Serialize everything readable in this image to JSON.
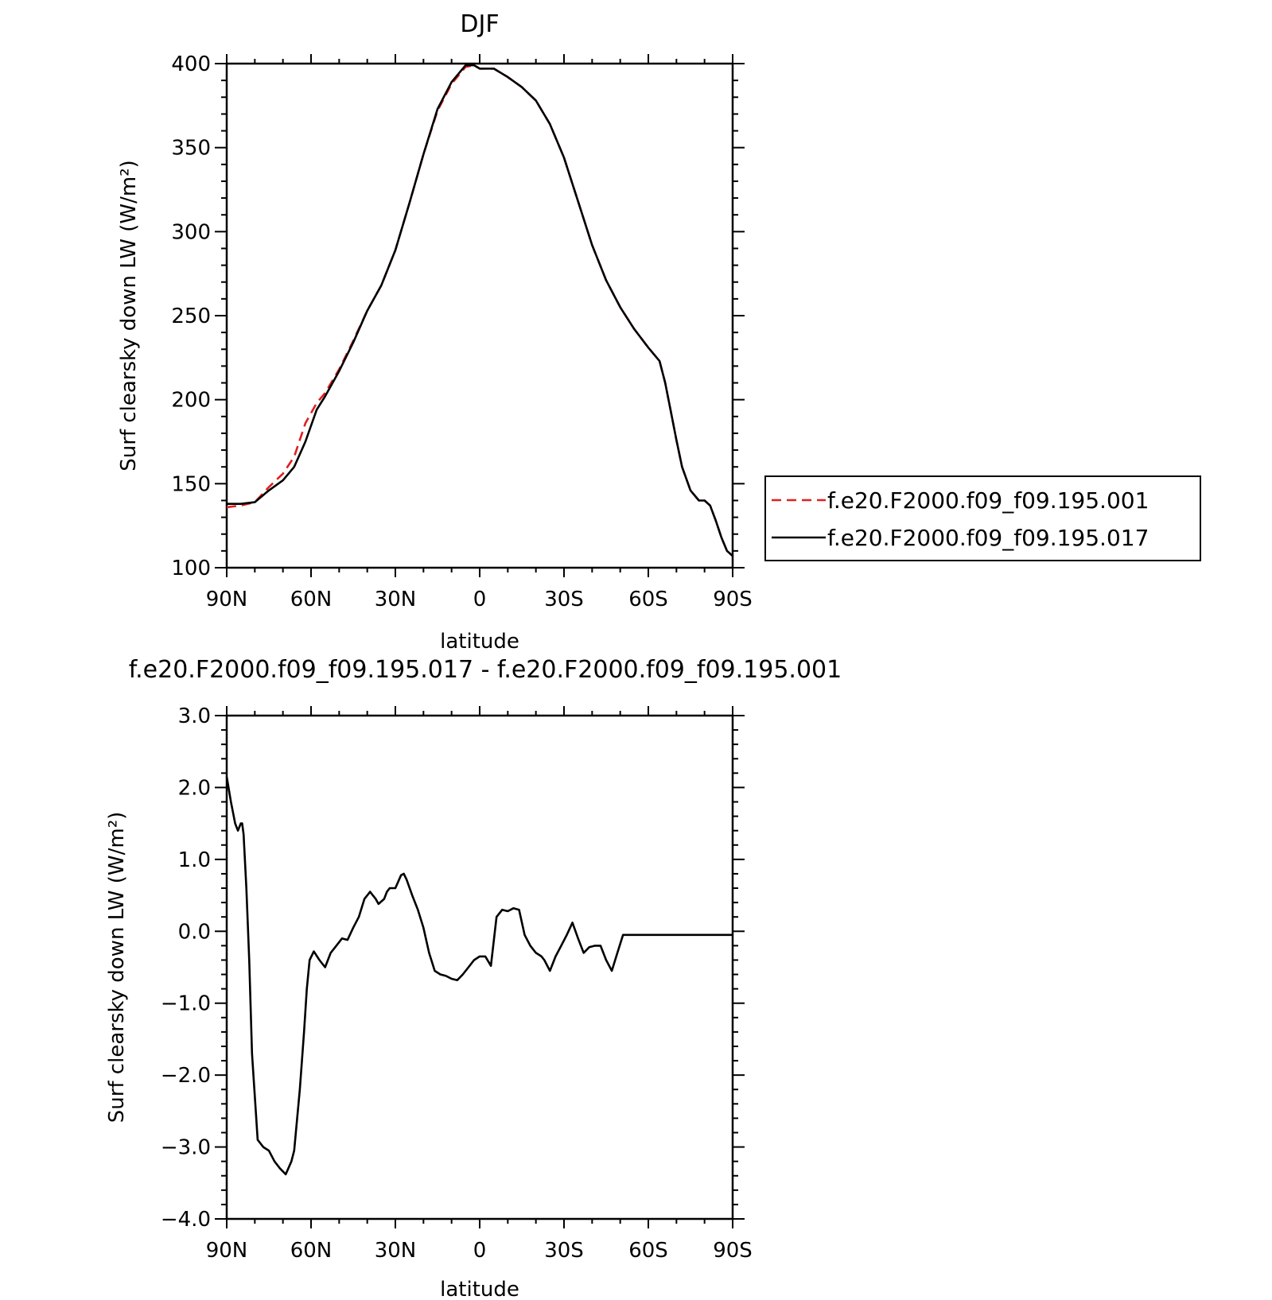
{
  "chart_data": [
    {
      "type": "line",
      "title": "DJF",
      "xlabel": "latitude",
      "ylabel": "Surf clearsky down LW (W/m²)",
      "xlim": [
        90,
        -90
      ],
      "ylim": [
        100,
        400
      ],
      "x_ticks": [
        {
          "value": 90,
          "label": "90N"
        },
        {
          "value": 60,
          "label": "60N"
        },
        {
          "value": 30,
          "label": "30N"
        },
        {
          "value": 0,
          "label": "0"
        },
        {
          "value": -30,
          "label": "30S"
        },
        {
          "value": -60,
          "label": "60S"
        },
        {
          "value": -90,
          "label": "90S"
        }
      ],
      "y_ticks": [
        {
          "value": 400,
          "label": "400"
        },
        {
          "value": 350,
          "label": "350"
        },
        {
          "value": 300,
          "label": "300"
        },
        {
          "value": 250,
          "label": "250"
        },
        {
          "value": 200,
          "label": "200"
        },
        {
          "value": 150,
          "label": "150"
        },
        {
          "value": 100,
          "label": "100"
        }
      ],
      "grid": false,
      "legend": "right",
      "series": [
        {
          "name": "f.e20.F2000.f09_f09.195.001",
          "color": "#e02020",
          "dash": "dashed",
          "x": [
            90,
            85,
            80,
            75,
            70,
            66,
            62,
            58,
            55,
            50,
            45,
            40,
            35,
            30,
            25,
            20,
            15,
            10,
            5,
            2,
            0,
            -5,
            -10,
            -15,
            -20,
            -25,
            -30,
            -35,
            -40,
            -45,
            -50,
            -55,
            -60,
            -64,
            -66,
            -68,
            -70,
            -72,
            -75,
            -78,
            -80,
            -82,
            -84,
            -86,
            -88,
            -90
          ],
          "y": [
            136,
            137,
            139,
            148,
            156,
            166,
            186,
            198,
            204,
            218,
            235,
            253,
            268,
            289,
            317,
            346,
            372,
            388,
            398,
            399,
            397,
            397,
            392,
            386,
            378,
            364,
            344,
            318,
            292,
            271,
            255,
            242,
            231,
            223,
            210,
            193,
            176,
            160,
            146,
            140,
            140,
            137,
            128,
            118,
            110,
            107
          ],
          "y_unit": "W/m²"
        },
        {
          "name": "f.e20.F2000.f09_f09.195.017",
          "color": "#000000",
          "dash": "solid",
          "x": [
            90,
            85,
            80,
            75,
            70,
            66,
            62,
            58,
            55,
            50,
            45,
            40,
            35,
            30,
            25,
            20,
            15,
            10,
            5,
            2,
            0,
            -5,
            -10,
            -15,
            -20,
            -25,
            -30,
            -35,
            -40,
            -45,
            -50,
            -55,
            -60,
            -64,
            -66,
            -68,
            -70,
            -72,
            -75,
            -78,
            -80,
            -82,
            -84,
            -86,
            -88,
            -90
          ],
          "y": [
            138,
            138,
            139,
            146,
            152,
            160,
            175,
            194,
            202,
            217,
            234,
            253,
            268,
            289,
            317,
            346,
            373,
            389,
            399,
            399,
            397,
            397,
            392,
            386,
            378,
            364,
            344,
            318,
            292,
            271,
            255,
            242,
            231,
            223,
            210,
            193,
            176,
            160,
            146,
            140,
            140,
            137,
            128,
            118,
            110,
            107
          ],
          "y_unit": "W/m²"
        }
      ]
    },
    {
      "type": "line",
      "title": "f.e20.F2000.f09_f09.195.017 - f.e20.F2000.f09_f09.195.001",
      "xlabel": "latitude",
      "ylabel": "Surf clearsky down LW (W/m²)",
      "xlim": [
        90,
        -90
      ],
      "ylim": [
        -4.0,
        3.0
      ],
      "x_ticks": [
        {
          "value": 90,
          "label": "90N"
        },
        {
          "value": 60,
          "label": "60N"
        },
        {
          "value": 30,
          "label": "30N"
        },
        {
          "value": 0,
          "label": "0"
        },
        {
          "value": -30,
          "label": "30S"
        },
        {
          "value": -60,
          "label": "60S"
        },
        {
          "value": -90,
          "label": "90S"
        }
      ],
      "y_ticks": [
        {
          "value": 3.0,
          "label": "3.0"
        },
        {
          "value": 2.0,
          "label": "2.0"
        },
        {
          "value": 1.0,
          "label": "1.0"
        },
        {
          "value": 0.0,
          "label": "0.0"
        },
        {
          "value": -1.0,
          "label": "−1.0"
        },
        {
          "value": -2.0,
          "label": "−2.0"
        },
        {
          "value": -3.0,
          "label": "−3.0"
        },
        {
          "value": -4.0,
          "label": "−4.0"
        }
      ],
      "grid": false,
      "series": [
        {
          "color": "#000000",
          "dash": "solid",
          "x": [
            90,
            88.5,
            87,
            86,
            85,
            84.5,
            84,
            83,
            82,
            81,
            79,
            77,
            75,
            73,
            71,
            69,
            67,
            66,
            64,
            62.5,
            61.5,
            60.5,
            59,
            57,
            55,
            53,
            51,
            49,
            47,
            45,
            43,
            41,
            40,
            39,
            38,
            37,
            36,
            34,
            33,
            32,
            30,
            28,
            27,
            26,
            24,
            22,
            20,
            18,
            16,
            14,
            12,
            10,
            8,
            6,
            4,
            2,
            0,
            -2,
            -4,
            -6,
            -8,
            -10,
            -12,
            -14,
            -16,
            -18,
            -20,
            -22,
            -23,
            -25,
            -27,
            -29,
            -31,
            -33,
            -35,
            -37,
            -39,
            -41,
            -43,
            -45,
            -47,
            -49,
            -51,
            -53,
            -55,
            -57,
            -59,
            -61,
            -63,
            -65,
            -67,
            -69,
            -71,
            -73,
            -75,
            -77,
            -79,
            -81,
            -83,
            -85,
            -87,
            -88,
            -89,
            -90
          ],
          "y": [
            2.15,
            1.8,
            1.5,
            1.4,
            1.5,
            1.5,
            1.35,
            0.6,
            -0.4,
            -1.7,
            -2.9,
            -3.0,
            -3.05,
            -3.2,
            -3.3,
            -3.38,
            -3.2,
            -3.05,
            -2.2,
            -1.4,
            -0.8,
            -0.4,
            -0.28,
            -0.4,
            -0.5,
            -0.3,
            -0.2,
            -0.1,
            -0.12,
            0.05,
            0.2,
            0.45,
            0.5,
            0.55,
            0.5,
            0.45,
            0.38,
            0.45,
            0.55,
            0.6,
            0.6,
            0.78,
            0.8,
            0.72,
            0.5,
            0.3,
            0.05,
            -0.3,
            -0.55,
            -0.6,
            -0.62,
            -0.66,
            -0.68,
            -0.6,
            -0.5,
            -0.4,
            -0.35,
            -0.35,
            -0.48,
            0.2,
            0.3,
            0.28,
            0.32,
            0.3,
            -0.05,
            -0.2,
            -0.3,
            -0.35,
            -0.4,
            -0.55,
            -0.35,
            -0.2,
            -0.05,
            0.12,
            -0.1,
            -0.3,
            -0.22,
            -0.2,
            -0.2,
            -0.4,
            -0.55,
            -0.3,
            -0.05,
            -0.05,
            -0.05,
            -0.05,
            -0.05,
            -0.05,
            -0.05,
            -0.05,
            -0.05,
            -0.05,
            -0.05,
            -0.05,
            -0.05,
            -0.05,
            -0.05,
            -0.05,
            -0.05,
            -0.05,
            -0.05,
            -0.05,
            -0.05,
            -0.05
          ],
          "y_unit": "W/m²"
        }
      ]
    }
  ]
}
